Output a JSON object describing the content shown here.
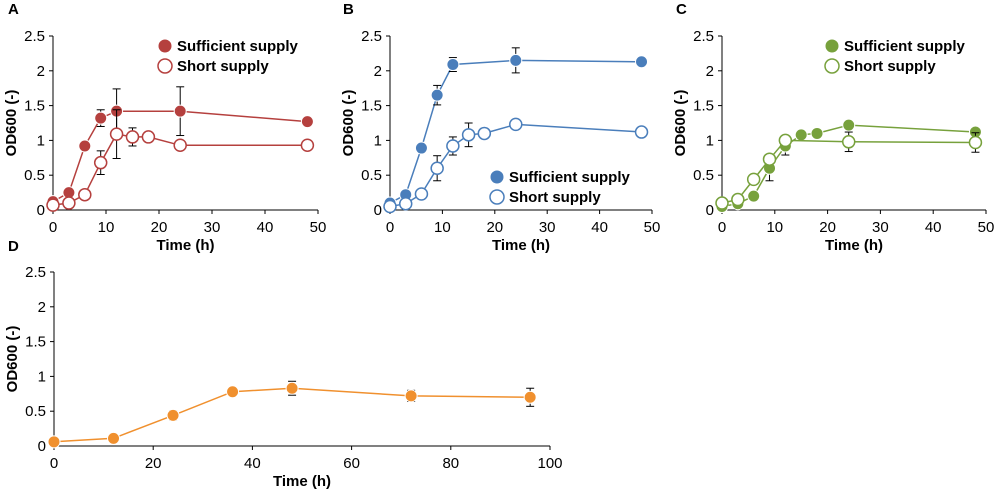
{
  "figure": {
    "panels": [
      "A",
      "B",
      "C",
      "D"
    ]
  },
  "chart_data": [
    {
      "panel": "A",
      "type": "line",
      "title": "",
      "xlabel": "Time (h)",
      "ylabel": "OD600 (-)",
      "xlim": [
        0,
        50
      ],
      "ylim": [
        0,
        2.5
      ],
      "xticks": [
        "0",
        "10",
        "20",
        "30",
        "40",
        "50"
      ],
      "yticks": [
        "0",
        "0.5",
        "1",
        "1.5",
        "2",
        "2.5"
      ],
      "legend_position": "top-right",
      "color": "#b5403e",
      "series": [
        {
          "name": "Sufficient supply",
          "filled": true,
          "x": [
            0,
            3,
            6,
            9,
            12,
            24,
            48
          ],
          "y": [
            0.12,
            0.25,
            0.92,
            1.32,
            1.42,
            1.42,
            1.27
          ],
          "err": [
            0.03,
            0.04,
            0.06,
            0.12,
            0.32,
            0.35,
            0.04
          ]
        },
        {
          "name": "Short supply",
          "filled": false,
          "x": [
            0,
            3,
            6,
            9,
            12,
            15,
            18,
            24,
            48
          ],
          "y": [
            0.07,
            0.1,
            0.22,
            0.68,
            1.09,
            1.05,
            1.05,
            0.93,
            0.93
          ],
          "err": [
            0.02,
            0.02,
            0.03,
            0.17,
            0.35,
            0.13,
            0.03,
            0.03,
            0.03
          ]
        }
      ]
    },
    {
      "panel": "B",
      "type": "line",
      "title": "",
      "xlabel": "Time (h)",
      "ylabel": "OD600 (-)",
      "xlim": [
        0,
        50
      ],
      "ylim": [
        0,
        2.5
      ],
      "xticks": [
        "0",
        "10",
        "20",
        "30",
        "40",
        "50"
      ],
      "yticks": [
        "0",
        "0.5",
        "1",
        "1.5",
        "2",
        "2.5"
      ],
      "legend_position": "bottom-right",
      "color": "#4a7ebb",
      "series": [
        {
          "name": "Sufficient supply",
          "filled": true,
          "x": [
            0,
            3,
            6,
            9,
            12,
            24,
            48
          ],
          "y": [
            0.1,
            0.22,
            0.89,
            1.65,
            2.09,
            2.15,
            2.13
          ],
          "err": [
            0.02,
            0.03,
            0.05,
            0.14,
            0.1,
            0.18,
            0.03
          ]
        },
        {
          "name": "Short supply",
          "filled": false,
          "x": [
            0,
            3,
            6,
            9,
            12,
            15,
            18,
            24,
            48
          ],
          "y": [
            0.05,
            0.09,
            0.23,
            0.6,
            0.92,
            1.08,
            1.1,
            1.23,
            1.12
          ],
          "err": [
            0.02,
            0.02,
            0.03,
            0.18,
            0.13,
            0.17,
            0.03,
            0.03,
            0.03
          ]
        }
      ]
    },
    {
      "panel": "C",
      "type": "line",
      "title": "",
      "xlabel": "Time (h)",
      "ylabel": "OD600 (-)",
      "xlim": [
        0,
        50
      ],
      "ylim": [
        0,
        2.5
      ],
      "xticks": [
        "0",
        "10",
        "20",
        "30",
        "40",
        "50"
      ],
      "yticks": [
        "0",
        "0.5",
        "1",
        "1.5",
        "2",
        "2.5"
      ],
      "legend_position": "top-right",
      "color": "#77a13c",
      "series": [
        {
          "name": "Sufficient supply",
          "filled": true,
          "x": [
            0,
            3,
            6,
            9,
            12,
            15,
            18,
            24,
            48
          ],
          "y": [
            0.05,
            0.09,
            0.2,
            0.6,
            0.92,
            1.08,
            1.1,
            1.22,
            1.12
          ],
          "err": [
            0.02,
            0.02,
            0.03,
            0.18,
            0.13,
            0.03,
            0.03,
            0.05,
            0.03
          ]
        },
        {
          "name": "Short supply",
          "filled": false,
          "x": [
            0,
            3,
            6,
            9,
            12,
            24,
            48
          ],
          "y": [
            0.1,
            0.15,
            0.44,
            0.73,
            1.0,
            0.98,
            0.97
          ],
          "err": [
            0.02,
            0.03,
            0.05,
            0.05,
            0.03,
            0.14,
            0.14
          ]
        }
      ]
    },
    {
      "panel": "D",
      "type": "line",
      "title": "",
      "xlabel": "Time (h)",
      "ylabel": "OD600 (-)",
      "xlim": [
        0,
        100
      ],
      "ylim": [
        0,
        2.5
      ],
      "xticks": [
        "0",
        "20",
        "40",
        "60",
        "80",
        "100"
      ],
      "yticks": [
        "0",
        "0.5",
        "1",
        "1.5",
        "2",
        "2.5"
      ],
      "legend_position": "none",
      "color": "#f0902e",
      "series": [
        {
          "name": "",
          "filled": true,
          "x": [
            0,
            12,
            24,
            36,
            48,
            72,
            96
          ],
          "y": [
            0.06,
            0.11,
            0.44,
            0.78,
            0.83,
            0.72,
            0.7
          ],
          "err": [
            0.02,
            0.03,
            0.07,
            0.04,
            0.1,
            0.08,
            0.13
          ]
        }
      ]
    }
  ]
}
